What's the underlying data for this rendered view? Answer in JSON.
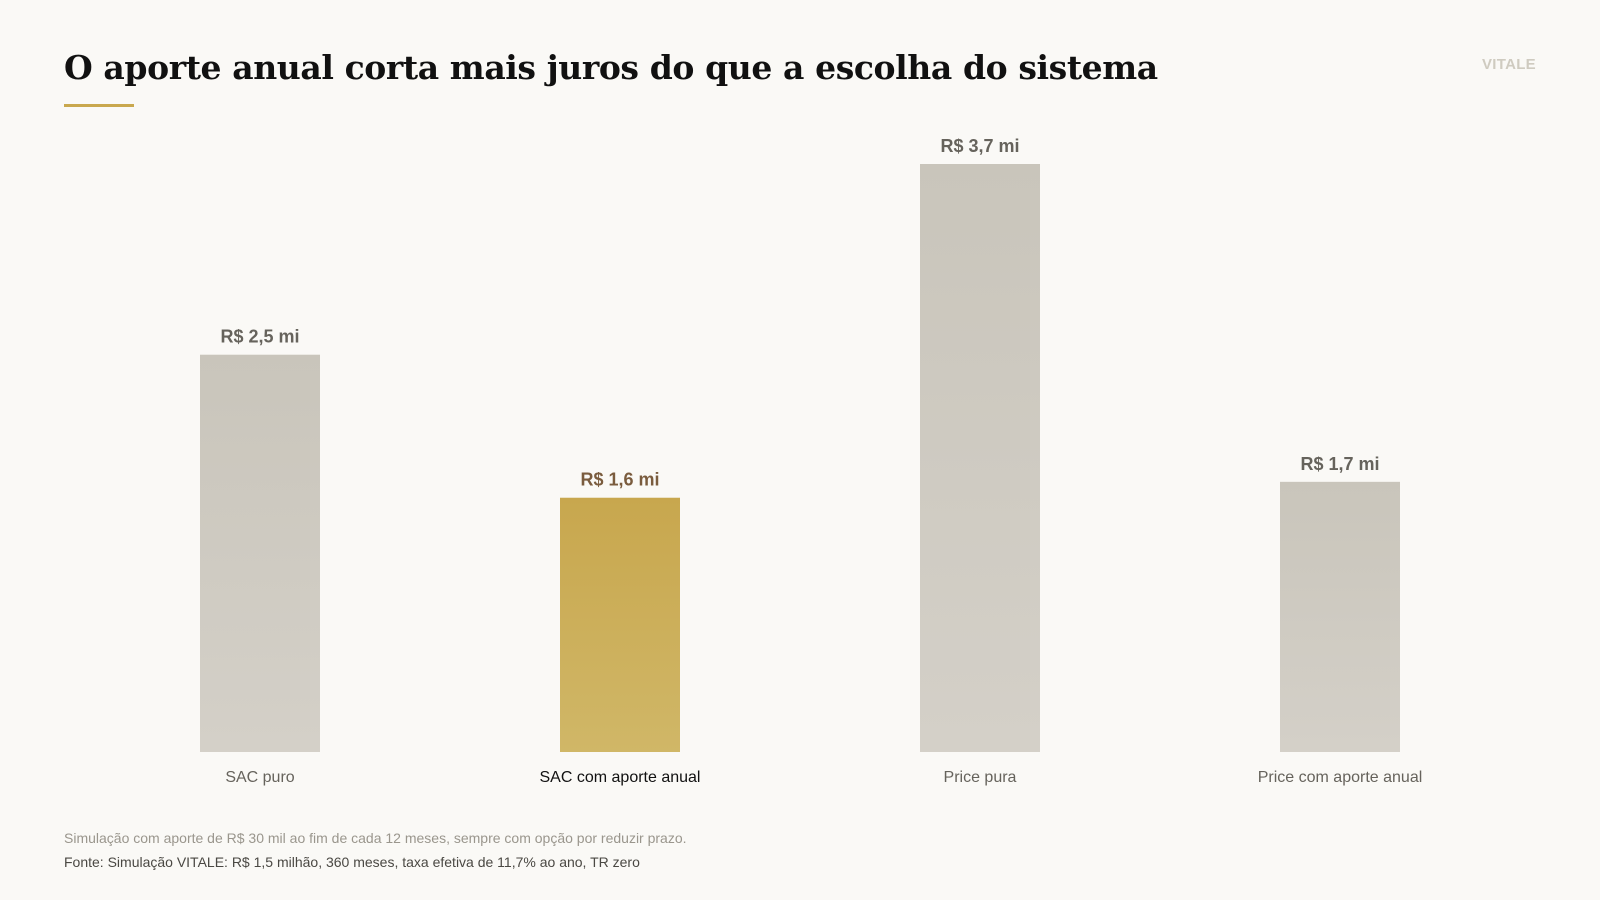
{
  "header": {
    "title": "O aporte anual corta mais juros do que a escolha do sistema",
    "brand": "VITALE"
  },
  "colors": {
    "background": "#faf9f6",
    "bar_neutral_top": "#c9c5bb",
    "bar_neutral_bottom": "#d4d0c8",
    "bar_highlight_top": "#c8a74e",
    "bar_highlight_bottom": "#d0b767",
    "label_neutral": "#66635c",
    "label_highlight": "#7a5c3e",
    "category_neutral": "#66635c",
    "category_highlight": "#111111",
    "accent_rule": "#c9a84e"
  },
  "chart_data": {
    "type": "bar",
    "categories": [
      "SAC puro",
      "SAC com aporte anual",
      "Price pura",
      "Price com aporte anual"
    ],
    "values": [
      2.5,
      1.6,
      3.7,
      1.7
    ],
    "value_labels": [
      "R$ 2,5 mi",
      "R$ 1,6 mi",
      "R$ 3,7 mi",
      "R$ 1,7 mi"
    ],
    "highlight_index": 1,
    "unit": "R$ mi",
    "ylim": [
      0,
      3.7
    ],
    "grid": false,
    "legend": "none"
  },
  "footer": {
    "note": "Simulação com aporte de R$ 30 mil ao fim de cada 12 meses, sempre com opção por reduzir prazo.",
    "source": "Fonte: Simulação VITALE: R$ 1,5 milhão, 360 meses, taxa efetiva de 11,7% ao ano, TR zero"
  }
}
